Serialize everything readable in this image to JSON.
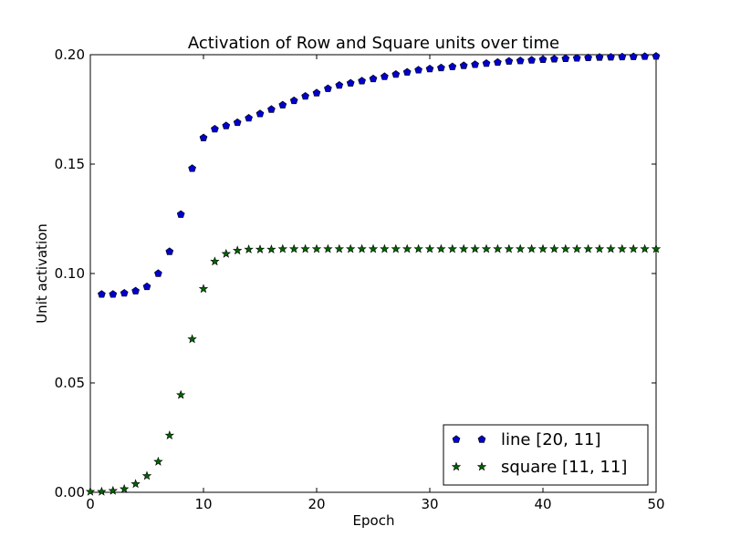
{
  "chart_data": {
    "type": "scatter",
    "title": "Activation of Row and Square units over time",
    "xlabel": "Epoch",
    "ylabel": "Unit activation",
    "xlim": [
      0,
      50
    ],
    "ylim": [
      0.0,
      0.2
    ],
    "xticks": [
      "0",
      "10",
      "20",
      "30",
      "40",
      "50"
    ],
    "yticks": [
      "0.00",
      "0.05",
      "0.10",
      "0.15",
      "0.20"
    ],
    "grid": false,
    "legend_position": "lower-right",
    "x": [
      1,
      2,
      3,
      4,
      5,
      6,
      7,
      8,
      9,
      10,
      11,
      12,
      13,
      14,
      15,
      16,
      17,
      18,
      19,
      20,
      21,
      22,
      23,
      24,
      25,
      26,
      27,
      28,
      29,
      30,
      31,
      32,
      33,
      34,
      35,
      36,
      37,
      38,
      39,
      40,
      41,
      42,
      43,
      44,
      45,
      46,
      47,
      48,
      49,
      50
    ],
    "series": [
      {
        "name": "line [20, 11]",
        "marker": "pentagon",
        "color": "#0000cc",
        "x": [
          1,
          2,
          3,
          4,
          5,
          6,
          7,
          8,
          9,
          10,
          11,
          12,
          13,
          14,
          15,
          16,
          17,
          18,
          19,
          20,
          21,
          22,
          23,
          24,
          25,
          26,
          27,
          28,
          29,
          30,
          31,
          32,
          33,
          34,
          35,
          36,
          37,
          38,
          39,
          40,
          41,
          42,
          43,
          44,
          45,
          46,
          47,
          48,
          49,
          50
        ],
        "values": [
          0.0905,
          0.0905,
          0.091,
          0.092,
          0.094,
          0.1,
          0.11,
          0.127,
          0.148,
          0.162,
          0.166,
          0.1675,
          0.169,
          0.171,
          0.173,
          0.175,
          0.177,
          0.179,
          0.181,
          0.1825,
          0.1845,
          0.186,
          0.187,
          0.188,
          0.189,
          0.19,
          0.191,
          0.192,
          0.193,
          0.1935,
          0.194,
          0.1945,
          0.195,
          0.1955,
          0.196,
          0.1965,
          0.197,
          0.1972,
          0.1975,
          0.1978,
          0.198,
          0.1982,
          0.1984,
          0.1986,
          0.1988,
          0.1989,
          0.199,
          0.1991,
          0.1992,
          0.1993
        ]
      },
      {
        "name": "square [11, 11]",
        "marker": "star",
        "color": "#006400",
        "x": [
          0,
          1,
          2,
          3,
          4,
          5,
          6,
          7,
          8,
          9,
          10,
          11,
          12,
          13,
          14,
          15,
          16,
          17,
          18,
          19,
          20,
          21,
          22,
          23,
          24,
          25,
          26,
          27,
          28,
          29,
          30,
          31,
          32,
          33,
          34,
          35,
          36,
          37,
          38,
          39,
          40,
          41,
          42,
          43,
          44,
          45,
          46,
          47,
          48,
          49,
          50
        ],
        "values": [
          0.0003,
          0.0003,
          0.0007,
          0.0015,
          0.0038,
          0.0075,
          0.014,
          0.026,
          0.0445,
          0.07,
          0.093,
          0.1055,
          0.109,
          0.1105,
          0.111,
          0.111,
          0.111,
          0.1112,
          0.1112,
          0.1112,
          0.1112,
          0.1112,
          0.1112,
          0.1112,
          0.1112,
          0.1112,
          0.1112,
          0.1112,
          0.1112,
          0.1112,
          0.1112,
          0.1112,
          0.1112,
          0.1112,
          0.1112,
          0.1112,
          0.1112,
          0.1112,
          0.1112,
          0.1112,
          0.1112,
          0.1112,
          0.1112,
          0.1112,
          0.1112,
          0.1112,
          0.1112,
          0.1112,
          0.1112,
          0.1112,
          0.1112
        ]
      }
    ]
  }
}
